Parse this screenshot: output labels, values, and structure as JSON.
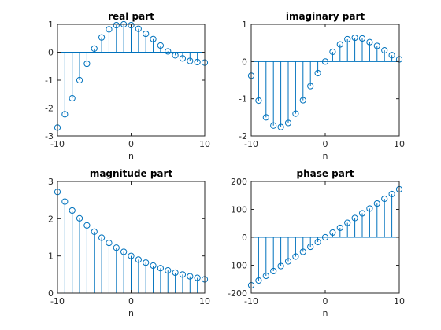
{
  "colors": {
    "stem": "#0072bd",
    "axis": "#262626",
    "background": "#ffffff"
  },
  "chart_data": [
    {
      "type": "stem",
      "title": "real part",
      "xlabel": "n",
      "ylabel": "",
      "xlim": [
        -10,
        10
      ],
      "ylim": [
        -3,
        1
      ],
      "xticks": [
        -10,
        0,
        10
      ],
      "xtick_labels": [
        "-10",
        "0",
        "10"
      ],
      "yticks": [
        -3,
        -2,
        -1,
        0,
        1
      ],
      "ytick_labels": [
        "-3",
        "-2",
        "-1",
        "0",
        "1"
      ],
      "grid": false,
      "x": [
        -10,
        -9,
        -8,
        -7,
        -6,
        -5,
        -4,
        -3,
        -2,
        -1,
        0,
        1,
        2,
        3,
        4,
        5,
        6,
        7,
        8,
        9,
        10
      ],
      "y": [
        -2.7,
        -2.22,
        -1.65,
        -1.0,
        -0.41,
        0.13,
        0.53,
        0.82,
        0.97,
        1.0,
        0.97,
        0.84,
        0.66,
        0.47,
        0.24,
        0.03,
        -0.11,
        -0.22,
        -0.31,
        -0.35,
        -0.37
      ]
    },
    {
      "type": "stem",
      "title": "imaginary part",
      "xlabel": "n",
      "ylabel": "",
      "xlim": [
        -10,
        10
      ],
      "ylim": [
        -2,
        1
      ],
      "xticks": [
        -10,
        0,
        10
      ],
      "xtick_labels": [
        "-10",
        "0",
        "10"
      ],
      "yticks": [
        -2,
        -1,
        0,
        1
      ],
      "ytick_labels": [
        "-2",
        "-1",
        "0",
        "1"
      ],
      "grid": false,
      "x": [
        -10,
        -9,
        -8,
        -7,
        -6,
        -5,
        -4,
        -3,
        -2,
        -1,
        0,
        1,
        2,
        3,
        4,
        5,
        6,
        7,
        8,
        9,
        10
      ],
      "y": [
        -0.38,
        -1.05,
        -1.5,
        -1.72,
        -1.76,
        -1.65,
        -1.4,
        -1.04,
        -0.66,
        -0.31,
        0.0,
        0.26,
        0.46,
        0.6,
        0.64,
        0.62,
        0.52,
        0.42,
        0.3,
        0.17,
        0.06
      ]
    },
    {
      "type": "stem",
      "title": "magnitude part",
      "xlabel": "n",
      "ylabel": "",
      "xlim": [
        -10,
        10
      ],
      "ylim": [
        0,
        3
      ],
      "xticks": [
        -10,
        0,
        10
      ],
      "xtick_labels": [
        "-10",
        "0",
        "10"
      ],
      "yticks": [
        0,
        1,
        2,
        3
      ],
      "ytick_labels": [
        "0",
        "1",
        "2",
        "3"
      ],
      "grid": false,
      "x": [
        -10,
        -9,
        -8,
        -7,
        -6,
        -5,
        -4,
        -3,
        -2,
        -1,
        0,
        1,
        2,
        3,
        4,
        5,
        6,
        7,
        8,
        9,
        10
      ],
      "y": [
        2.72,
        2.46,
        2.22,
        2.01,
        1.82,
        1.65,
        1.49,
        1.35,
        1.22,
        1.11,
        1.0,
        0.9,
        0.82,
        0.74,
        0.67,
        0.61,
        0.55,
        0.5,
        0.45,
        0.41,
        0.37
      ]
    },
    {
      "type": "stem",
      "title": "phase part",
      "xlabel": "n",
      "ylabel": "",
      "xlim": [
        -10,
        10
      ],
      "ylim": [
        -200,
        200
      ],
      "xticks": [
        -10,
        0,
        10
      ],
      "xtick_labels": [
        "-10",
        "0",
        "10"
      ],
      "yticks": [
        -200,
        -100,
        0,
        100,
        200
      ],
      "ytick_labels": [
        "-200",
        "-100",
        "0",
        "100",
        "200"
      ],
      "grid": false,
      "x": [
        -10,
        -9,
        -8,
        -7,
        -6,
        -5,
        -4,
        -3,
        -2,
        -1,
        0,
        1,
        2,
        3,
        4,
        5,
        6,
        7,
        8,
        9,
        10
      ],
      "y": [
        -172,
        -155,
        -138,
        -121,
        -103,
        -86,
        -69,
        -52,
        -34,
        -17,
        0,
        17,
        34,
        52,
        69,
        86,
        103,
        121,
        138,
        155,
        172
      ]
    }
  ]
}
